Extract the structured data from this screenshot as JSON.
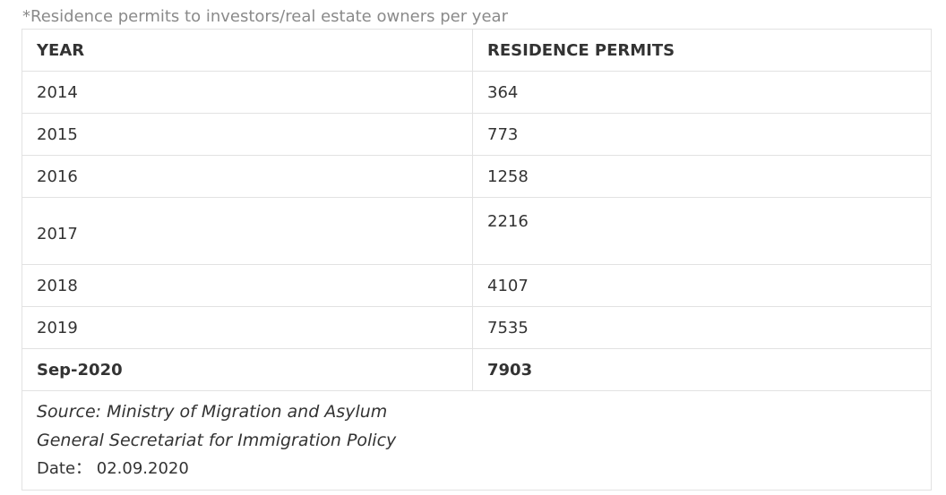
{
  "caption": "*Residence permits to investors/real estate owners per year",
  "table": {
    "headers": [
      "YEAR",
      "RESIDENCE PERMITS"
    ],
    "rows": [
      {
        "year": "2014",
        "permits": "364"
      },
      {
        "year": "2015",
        "permits": "773"
      },
      {
        "year": "2016",
        "permits": "1258"
      },
      {
        "year": "2017",
        "permits": "2216"
      },
      {
        "year": "2018",
        "permits": "4107"
      },
      {
        "year": "2019",
        "permits": "7535"
      },
      {
        "year": "Sep-2020",
        "permits": "7903"
      }
    ],
    "highlight_color": "#e8243a",
    "header_color": "#1532a6"
  },
  "footer": {
    "source_line1": "Source:  Ministry of Migration and Asylum",
    "source_line2": "General Secretariat for Immigration Policy",
    "date_line": "Date： 02.09.2020"
  }
}
